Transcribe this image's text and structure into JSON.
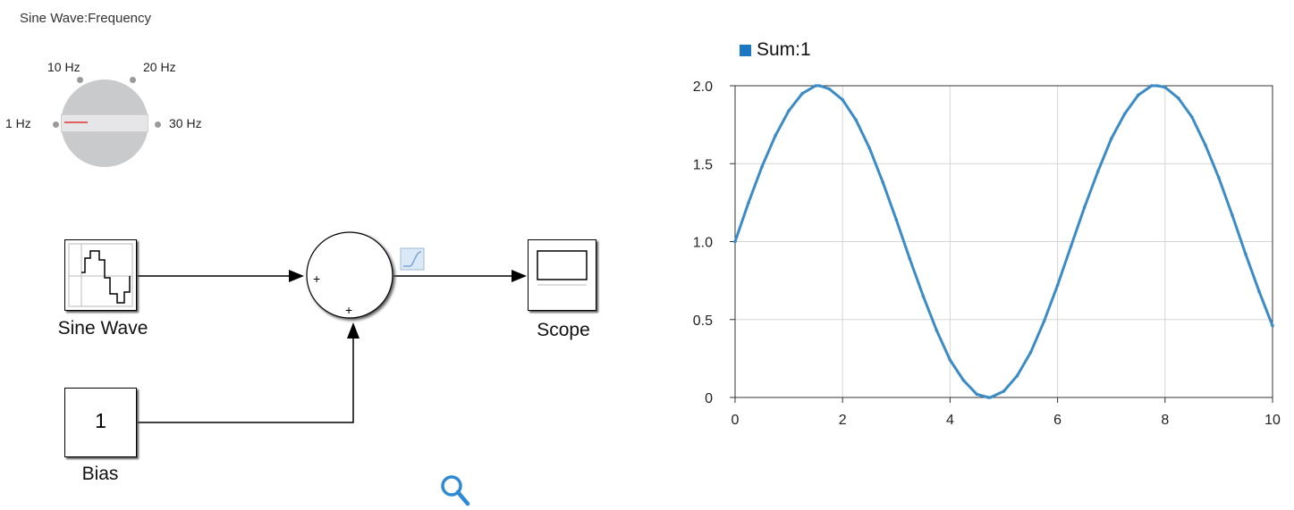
{
  "knob": {
    "title": "Sine Wave:Frequency",
    "labels": [
      "1 Hz",
      "10 Hz",
      "20 Hz",
      "30 Hz"
    ],
    "selected": "1 Hz",
    "needle_color": "#e06060"
  },
  "blocks": {
    "sine_wave": {
      "label": "Sine Wave"
    },
    "sum": {
      "signs": [
        "+",
        "+"
      ]
    },
    "scope": {
      "label": "Scope"
    },
    "bias": {
      "label": "Bias",
      "value": "1"
    }
  },
  "icons": {
    "zoom": "magnifier-icon",
    "signal_preview": "signal-preview-icon"
  },
  "chart_data": {
    "type": "line",
    "legend": "Sum:1",
    "legend_placement": "top-left",
    "series_color": "#3b8bc6",
    "xlim": [
      0,
      10
    ],
    "ylim": [
      0,
      2
    ],
    "grid": true,
    "xticks": [
      "0",
      "2",
      "4",
      "6",
      "8",
      "10"
    ],
    "yticks": [
      "0",
      "0.5",
      "1.0",
      "1.5",
      "2.0"
    ],
    "series": [
      {
        "name": "Sum:1",
        "x": [
          0,
          0.25,
          0.5,
          0.75,
          1,
          1.25,
          1.5,
          1.571,
          1.75,
          2,
          2.25,
          2.5,
          2.75,
          3,
          3.25,
          3.5,
          3.75,
          4,
          4.25,
          4.5,
          4.712,
          4.75,
          5,
          5.25,
          5.5,
          5.75,
          6,
          6.25,
          6.5,
          6.75,
          7,
          7.25,
          7.5,
          7.75,
          7.854,
          8,
          8.25,
          8.5,
          8.75,
          9,
          9.25,
          9.5,
          9.75,
          10
        ],
        "y": [
          1.0,
          1.25,
          1.48,
          1.68,
          1.84,
          1.95,
          2.0,
          2.0,
          1.98,
          1.91,
          1.78,
          1.6,
          1.38,
          1.14,
          0.89,
          0.65,
          0.43,
          0.24,
          0.11,
          0.02,
          0.0,
          0.0,
          0.04,
          0.14,
          0.29,
          0.49,
          0.72,
          0.97,
          1.22,
          1.45,
          1.66,
          1.82,
          1.94,
          2.0,
          2.0,
          1.99,
          1.92,
          1.8,
          1.62,
          1.41,
          1.17,
          0.92,
          0.68,
          0.46
        ]
      }
    ]
  }
}
